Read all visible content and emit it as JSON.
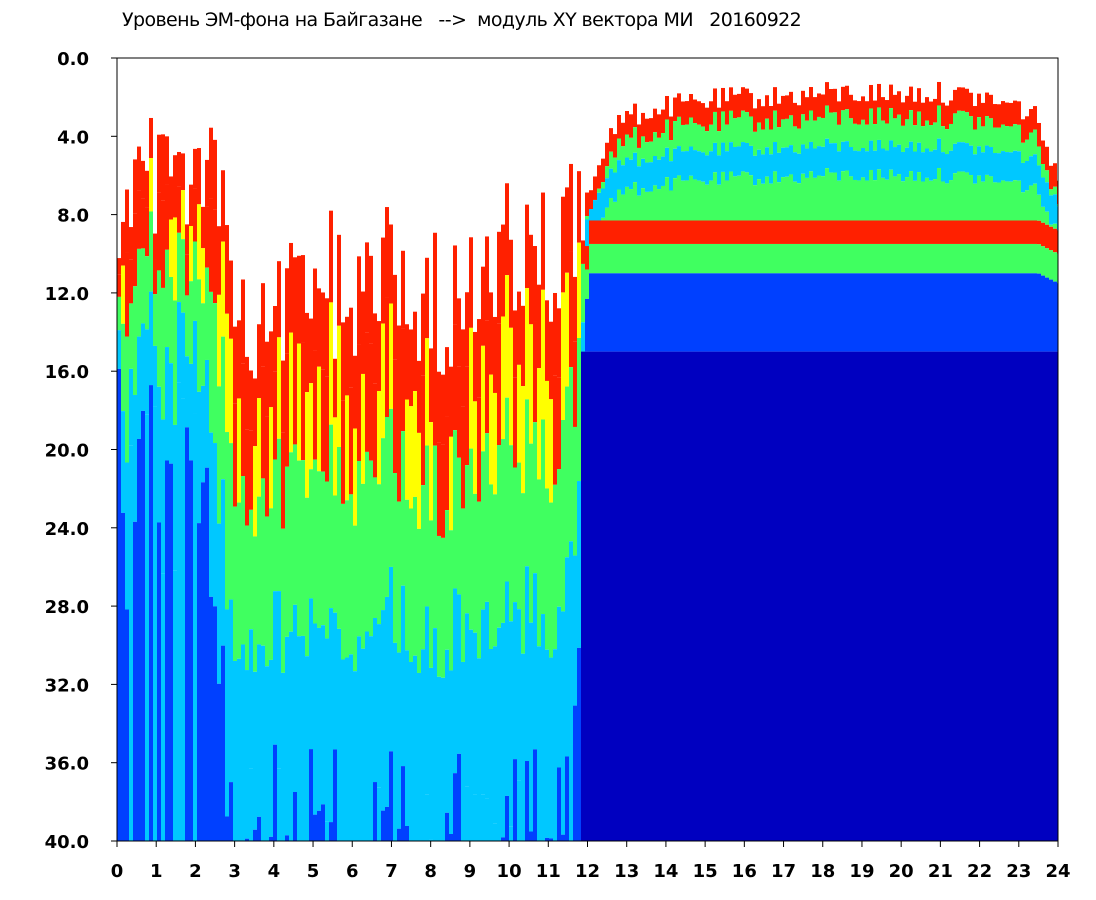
{
  "chart_data": {
    "type": "heatmap",
    "title": "Уровень ЭМ-фона на Байгазане   -->  модуль XY вектора МИ   20160922",
    "xlabel": "",
    "ylabel": "",
    "x_ticks": [
      "0",
      "1",
      "2",
      "3",
      "4",
      "5",
      "6",
      "7",
      "8",
      "9",
      "10",
      "11",
      "12",
      "13",
      "14",
      "15",
      "16",
      "17",
      "18",
      "19",
      "20",
      "21",
      "22",
      "23",
      "24"
    ],
    "y_ticks": [
      "0.0",
      "4.0",
      "8.0",
      "12.0",
      "16.0",
      "20.0",
      "24.0",
      "28.0",
      "32.0",
      "36.0",
      "40.0"
    ],
    "xlim": [
      0,
      24
    ],
    "ylim": [
      0,
      40
    ],
    "y_inverted": true,
    "grid": false,
    "legend": "none",
    "colorscale": [
      "#0000c0",
      "#0040ff",
      "#00c8ff",
      "#40ff60",
      "#ffff00",
      "#ff2000",
      "#ffffff"
    ],
    "profile": {
      "description_x": [
        0,
        0.25,
        0.5,
        1.0,
        1.25,
        1.6,
        2.0,
        2.3,
        2.6,
        3.0,
        3.5,
        4.0,
        5.0,
        6.0,
        7.0,
        8.0,
        9.0,
        9.6,
        10.0,
        10.5,
        11.0,
        11.6,
        11.8,
        12.0,
        12.5,
        13.0,
        14.0,
        15.0,
        16.0,
        17.0,
        18.0,
        19.0,
        20.0,
        21.0,
        22.0,
        23.0,
        23.5,
        24.0
      ],
      "top_y": [
        10,
        5,
        8,
        5,
        3,
        7,
        5,
        4,
        8,
        12,
        15,
        14,
        11,
        12,
        11,
        12,
        13,
        12,
        10,
        9,
        10,
        8,
        8,
        7,
        4,
        3,
        2.5,
        2.2,
        2.0,
        2.0,
        1.8,
        1.8,
        1.8,
        1.8,
        2.0,
        2.5,
        3.0,
        6.5
      ],
      "blue_y": [
        16,
        25,
        20,
        18,
        25,
        20,
        18,
        22,
        30,
        40,
        40,
        40,
        40,
        40,
        40,
        40,
        40,
        40,
        40,
        40,
        40,
        40,
        30,
        9.5,
        9.5,
        9.5,
        9.5,
        9.5,
        9.5,
        9.5,
        9.5,
        9.5,
        9.5,
        9.5,
        9.5,
        9.5,
        9.5,
        10
      ]
    }
  }
}
